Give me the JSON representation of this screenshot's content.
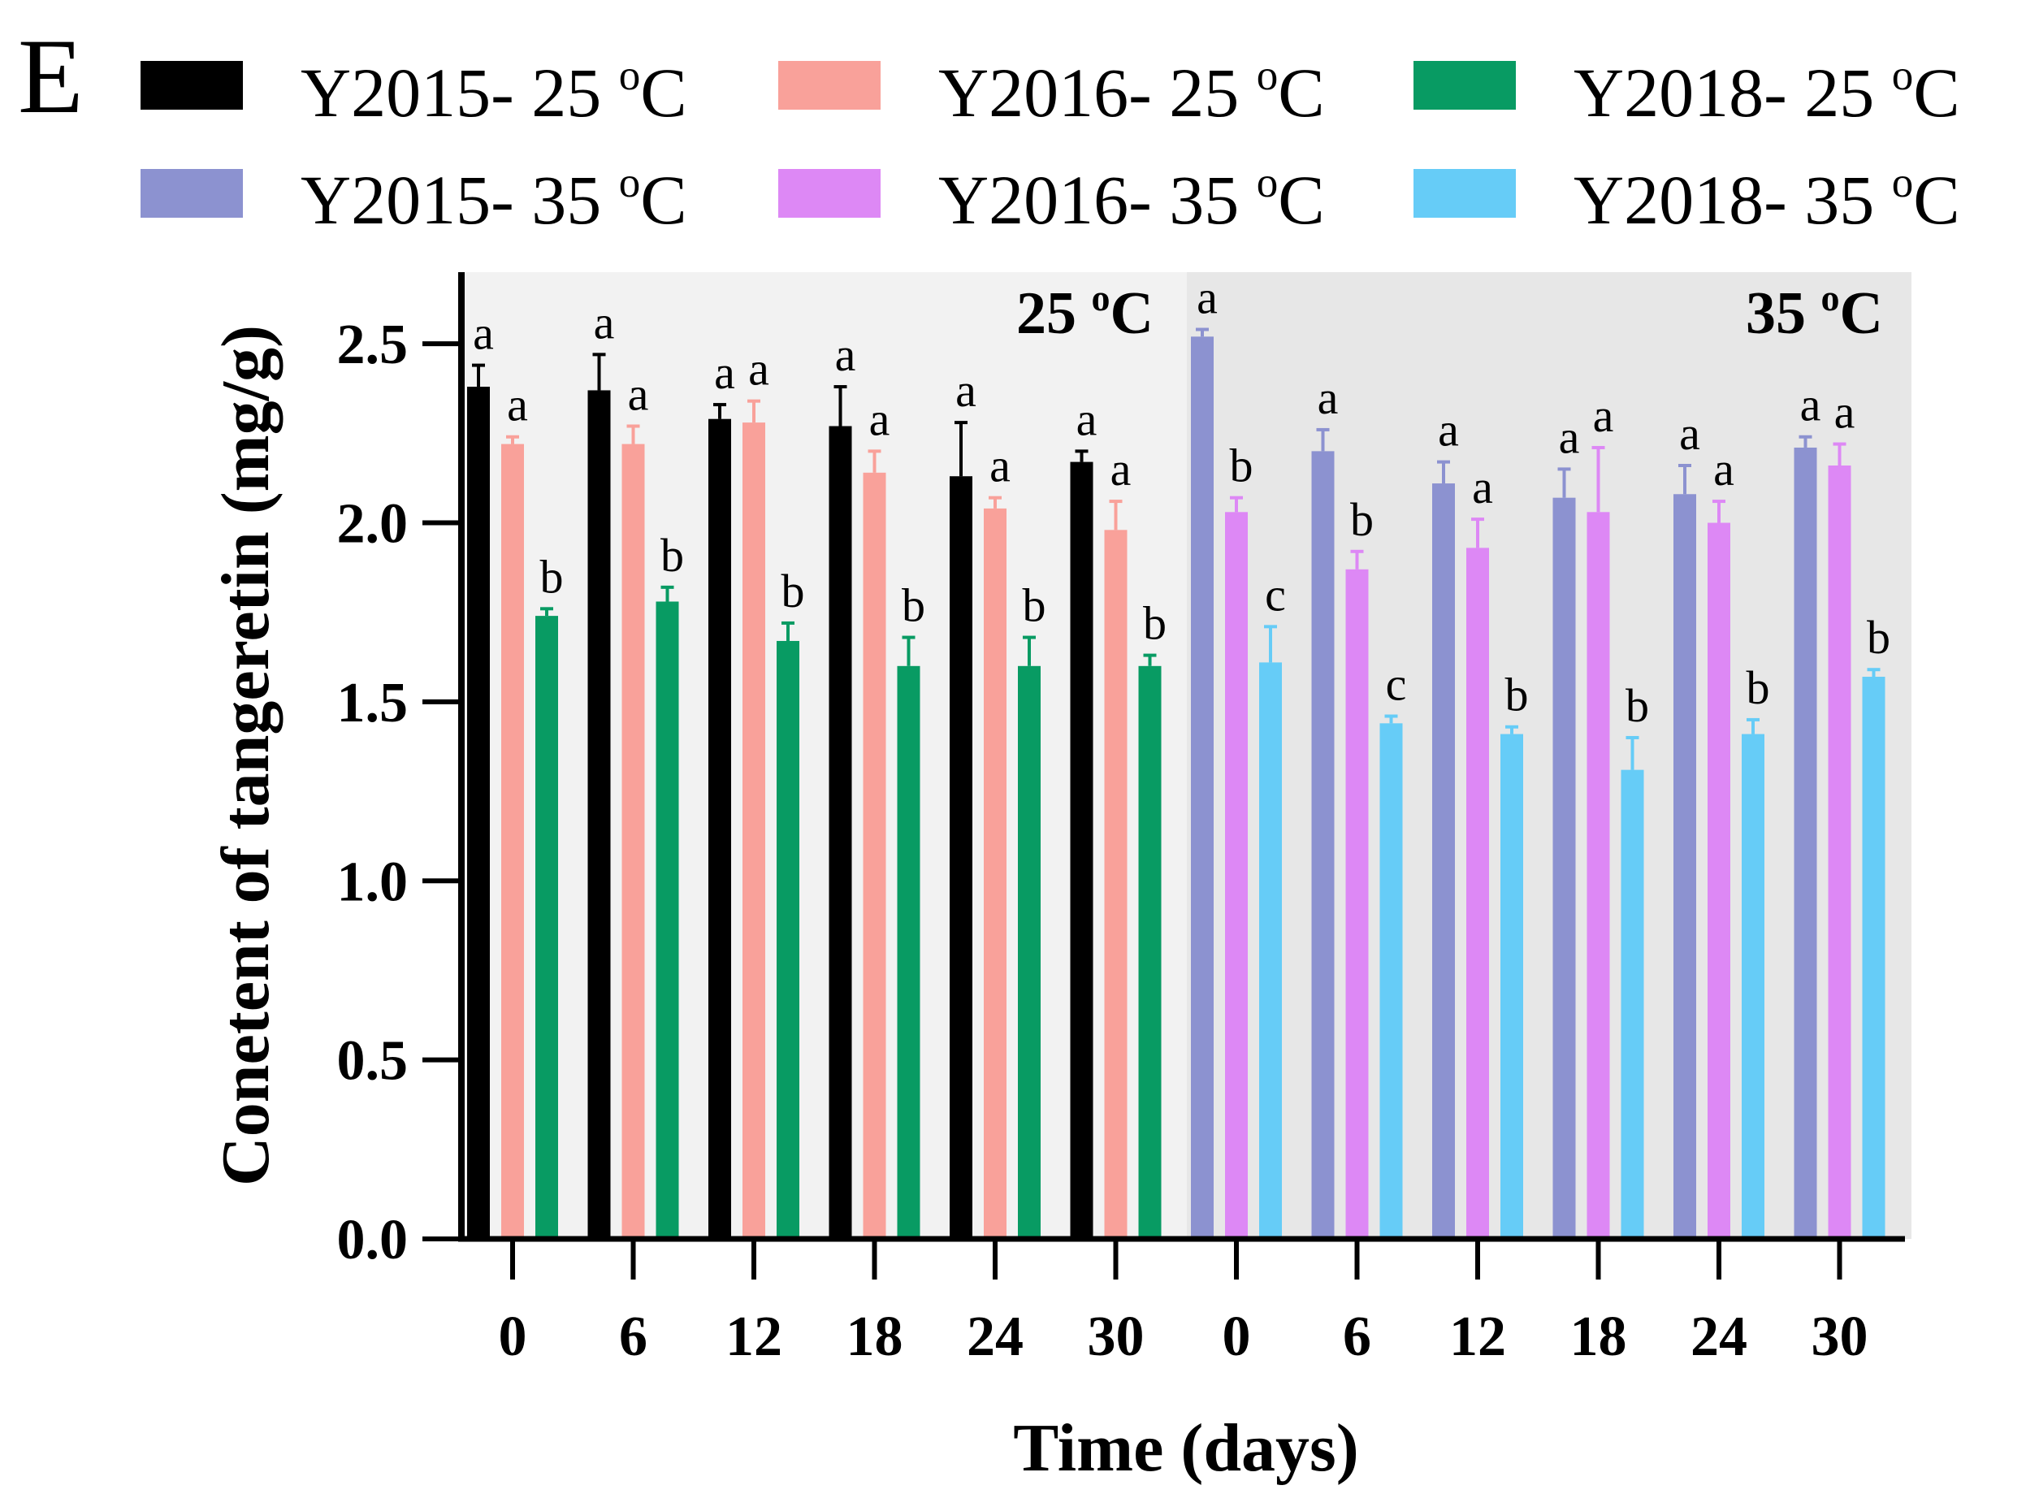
{
  "chart_data": {
    "type": "bar",
    "panel_label": "E",
    "xlabel": "Time (days)",
    "ylabel": "Conetent of tangeretin (mg/g)",
    "ylim": [
      0,
      2.7
    ],
    "yticks": [
      "0.0",
      "0.5",
      "1.0",
      "1.5",
      "2.0",
      "2.5"
    ],
    "grid": false,
    "legend_position": "top",
    "panels": [
      {
        "label": "25 °C",
        "label_parts": [
          "25 ",
          "o",
          "C"
        ],
        "shade": "#f2f2f2",
        "categories": [
          "0",
          "6",
          "12",
          "18",
          "24",
          "30"
        ],
        "series": [
          {
            "name": "Y2015- 25 °C",
            "name_parts": [
              "Y2015- 25 ",
              "o",
              "C"
            ],
            "color": "#000000",
            "values": [
              2.38,
              2.37,
              2.29,
              2.27,
              2.13,
              2.17
            ],
            "errors": [
              0.06,
              0.1,
              0.04,
              0.11,
              0.15,
              0.03
            ],
            "letters": [
              "a",
              "a",
              "a",
              "a",
              "a",
              "a"
            ]
          },
          {
            "name": "Y2016- 25 °C",
            "name_parts": [
              "Y2016- 25 ",
              "o",
              "C"
            ],
            "color": "#f9a19a",
            "values": [
              2.22,
              2.22,
              2.28,
              2.14,
              2.04,
              1.98
            ],
            "errors": [
              0.02,
              0.05,
              0.06,
              0.06,
              0.03,
              0.08
            ],
            "letters": [
              "a",
              "a",
              "a",
              "a",
              "a",
              "a"
            ]
          },
          {
            "name": "Y2018- 25 °C",
            "name_parts": [
              "Y2018- 25 ",
              "o",
              "C"
            ],
            "color": "#089b63",
            "values": [
              1.74,
              1.78,
              1.67,
              1.6,
              1.6,
              1.6
            ],
            "errors": [
              0.02,
              0.04,
              0.05,
              0.08,
              0.08,
              0.03
            ],
            "letters": [
              "b",
              "b",
              "b",
              "b",
              "b",
              "b"
            ]
          }
        ]
      },
      {
        "label": "35 °C",
        "label_parts": [
          "35 ",
          "o",
          "C"
        ],
        "shade": "#e7e7e7",
        "categories": [
          "0",
          "6",
          "12",
          "18",
          "24",
          "30"
        ],
        "series": [
          {
            "name": "Y2015- 35 °C",
            "name_parts": [
              "Y2015- 35 ",
              "o",
              "C"
            ],
            "color": "#8c92d0",
            "values": [
              2.52,
              2.2,
              2.11,
              2.07,
              2.08,
              2.21
            ],
            "errors": [
              0.02,
              0.06,
              0.06,
              0.08,
              0.08,
              0.03
            ],
            "letters": [
              "a",
              "a",
              "a",
              "a",
              "a",
              "a"
            ]
          },
          {
            "name": "Y2016- 35 °C",
            "name_parts": [
              "Y2016- 35 ",
              "o",
              "C"
            ],
            "color": "#dd88f5",
            "values": [
              2.03,
              1.87,
              1.93,
              2.03,
              2.0,
              2.16
            ],
            "errors": [
              0.04,
              0.05,
              0.08,
              0.18,
              0.06,
              0.06
            ],
            "letters": [
              "b",
              "b",
              "a",
              "a",
              "a",
              "a"
            ]
          },
          {
            "name": "Y2018- 35 °C",
            "name_parts": [
              "Y2018- 35 ",
              "o",
              "C"
            ],
            "color": "#66ccf7",
            "values": [
              1.61,
              1.44,
              1.41,
              1.31,
              1.41,
              1.57
            ],
            "errors": [
              0.1,
              0.02,
              0.02,
              0.09,
              0.04,
              0.02
            ],
            "letters": [
              "c",
              "c",
              "b",
              "b",
              "b",
              "b"
            ]
          }
        ]
      }
    ]
  }
}
